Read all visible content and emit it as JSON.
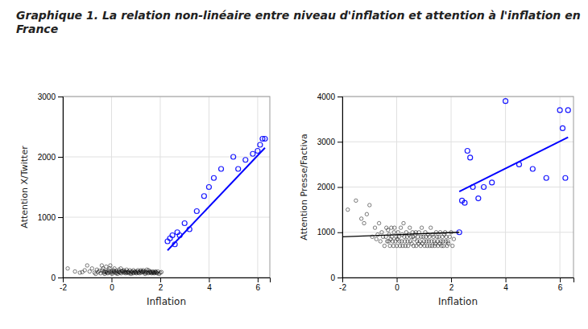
{
  "chart_data": [
    {
      "type": "scatter",
      "title": "Graphique 1. La relation non-linéaire entre niveau d'inflation et attention à l'inflation en\nFrance",
      "xlabel": "Inflation",
      "ylabel": "Attention X/Twitter",
      "xlim": [
        -2,
        6.5
      ],
      "ylim": [
        0,
        3000
      ],
      "xticks": [
        -2,
        0,
        2,
        4,
        6
      ],
      "yticks": [
        0,
        1000,
        2000,
        3000
      ],
      "grid": true,
      "series": [
        {
          "type": "scatter",
          "color": "#000000",
          "x": [
            -1.8,
            -1.5,
            -1.3,
            -1.2,
            -1.1,
            -1.0,
            -0.9,
            -0.8,
            -0.7,
            -0.65,
            -0.6,
            -0.55,
            -0.5,
            -0.45,
            -0.4,
            -0.38,
            -0.35,
            -0.32,
            -0.3,
            -0.28,
            -0.25,
            -0.22,
            -0.2,
            -0.18,
            -0.15,
            -0.12,
            -0.1,
            -0.08,
            -0.05,
            -0.02,
            0.0,
            0.02,
            0.05,
            0.08,
            0.1,
            0.12,
            0.15,
            0.18,
            0.2,
            0.22,
            0.25,
            0.28,
            0.3,
            0.32,
            0.35,
            0.38,
            0.4,
            0.42,
            0.45,
            0.48,
            0.5,
            0.52,
            0.55,
            0.58,
            0.6,
            0.62,
            0.65,
            0.68,
            0.7,
            0.72,
            0.75,
            0.78,
            0.8,
            0.82,
            0.85,
            0.88,
            0.9,
            0.92,
            0.95,
            0.98,
            1.0,
            1.02,
            1.05,
            1.08,
            1.1,
            1.12,
            1.15,
            1.18,
            1.2,
            1.22,
            1.25,
            1.28,
            1.3,
            1.32,
            1.35,
            1.38,
            1.4,
            1.42,
            1.45,
            1.48,
            1.5,
            1.52,
            1.55,
            1.58,
            1.6,
            1.62,
            1.65,
            1.68,
            1.7,
            1.72,
            1.75,
            1.78,
            1.8,
            1.82,
            1.85,
            1.88,
            1.9,
            1.95,
            2.0,
            2.05
          ],
          "values": [
            150,
            100,
            80,
            90,
            120,
            200,
            100,
            150,
            80,
            60,
            130,
            90,
            110,
            70,
            200,
            120,
            150,
            80,
            100,
            60,
            90,
            180,
            100,
            80,
            70,
            120,
            90,
            150,
            200,
            80,
            100,
            60,
            80,
            120,
            100,
            150,
            90,
            70,
            110,
            80,
            60,
            100,
            130,
            90,
            80,
            150,
            70,
            100,
            110,
            90,
            120,
            80,
            100,
            70,
            90,
            130,
            80,
            100,
            90,
            70,
            120,
            80,
            60,
            100,
            90,
            70,
            120,
            80,
            100,
            90,
            80,
            70,
            100,
            120,
            80,
            90,
            70,
            100,
            120,
            80,
            100,
            90,
            120,
            100,
            80,
            60,
            100,
            80,
            130,
            90,
            70,
            120,
            80,
            100,
            90,
            80,
            70,
            100,
            80,
            90,
            70,
            80,
            100,
            90,
            80,
            70,
            100,
            60,
            80,
            90
          ]
        },
        {
          "type": "scatter",
          "color": "#0000ff",
          "x": [
            2.3,
            2.4,
            2.5,
            2.6,
            2.7,
            2.8,
            3.0,
            3.2,
            3.5,
            3.8,
            4.0,
            4.2,
            4.5,
            5.0,
            5.2,
            5.5,
            5.8,
            6.0,
            6.1,
            6.2,
            6.3
          ],
          "values": [
            600,
            650,
            700,
            550,
            750,
            700,
            900,
            800,
            1100,
            1350,
            1500,
            1650,
            1800,
            2000,
            1800,
            1950,
            2050,
            2100,
            2200,
            2300,
            2300
          ]
        },
        {
          "type": "line",
          "color": "#0000ff",
          "x": [
            2.3,
            6.3
          ],
          "values": [
            450,
            2150
          ]
        }
      ]
    },
    {
      "type": "scatter",
      "xlabel": "Inflation",
      "ylabel": "Attention Presse/Factiva",
      "xlim": [
        -2,
        6.5
      ],
      "ylim": [
        0,
        4000
      ],
      "xticks": [
        -2,
        0,
        2,
        4,
        6
      ],
      "yticks": [
        0,
        1000,
        2000,
        3000,
        4000
      ],
      "grid": true,
      "series": [
        {
          "type": "scatter",
          "color": "#000000",
          "x": [
            -1.8,
            -1.5,
            -1.3,
            -1.2,
            -1.1,
            -1.0,
            -0.9,
            -0.8,
            -0.75,
            -0.7,
            -0.65,
            -0.6,
            -0.55,
            -0.5,
            -0.45,
            -0.4,
            -0.38,
            -0.35,
            -0.32,
            -0.3,
            -0.28,
            -0.25,
            -0.22,
            -0.2,
            -0.18,
            -0.15,
            -0.12,
            -0.1,
            -0.08,
            -0.05,
            -0.02,
            0.0,
            0.02,
            0.05,
            0.08,
            0.1,
            0.12,
            0.15,
            0.18,
            0.2,
            0.22,
            0.25,
            0.28,
            0.3,
            0.32,
            0.35,
            0.38,
            0.4,
            0.42,
            0.45,
            0.48,
            0.5,
            0.52,
            0.55,
            0.58,
            0.6,
            0.62,
            0.65,
            0.68,
            0.7,
            0.72,
            0.75,
            0.78,
            0.8,
            0.82,
            0.85,
            0.88,
            0.9,
            0.92,
            0.95,
            0.98,
            1.0,
            1.02,
            1.05,
            1.08,
            1.1,
            1.12,
            1.15,
            1.18,
            1.2,
            1.22,
            1.25,
            1.28,
            1.3,
            1.32,
            1.35,
            1.38,
            1.4,
            1.42,
            1.45,
            1.48,
            1.5,
            1.52,
            1.55,
            1.58,
            1.6,
            1.62,
            1.65,
            1.68,
            1.7,
            1.72,
            1.75,
            1.78,
            1.8,
            1.82,
            1.85,
            1.88,
            1.9,
            1.95,
            2.0,
            2.05,
            2.1
          ],
          "values": [
            1500,
            1700,
            1300,
            1200,
            1400,
            1600,
            900,
            1100,
            850,
            950,
            1200,
            800,
            1000,
            900,
            700,
            900,
            1100,
            800,
            1050,
            800,
            950,
            700,
            850,
            1100,
            900,
            800,
            700,
            1000,
            1100,
            800,
            900,
            700,
            850,
            1000,
            900,
            800,
            700,
            1100,
            800,
            950,
            700,
            1200,
            900,
            800,
            700,
            1000,
            900,
            800,
            700,
            950,
            1100,
            800,
            900,
            750,
            1000,
            900,
            700,
            850,
            950,
            1000,
            700,
            800,
            900,
            750,
            1000,
            800,
            700,
            900,
            1100,
            750,
            900,
            800,
            700,
            1000,
            900,
            800,
            700,
            950,
            800,
            900,
            700,
            1100,
            800,
            700,
            950,
            900,
            800,
            700,
            750,
            1000,
            900,
            800,
            700,
            900,
            750,
            1000,
            800,
            700,
            900,
            800,
            700,
            950,
            1000,
            800,
            900,
            700,
            800,
            750,
            900,
            1000,
            700,
            850
          ]
        },
        {
          "type": "scatter",
          "color": "#0000ff",
          "x": [
            2.3,
            2.4,
            2.5,
            2.6,
            2.7,
            2.8,
            3.0,
            3.2,
            3.5,
            4.0,
            4.5,
            5.0,
            5.5,
            6.0,
            6.1,
            6.2,
            6.3
          ],
          "values": [
            1000,
            1700,
            1650,
            2800,
            2650,
            2000,
            1750,
            2000,
            2100,
            3900,
            2500,
            2400,
            2200,
            3700,
            3300,
            2200,
            3700
          ]
        },
        {
          "type": "line",
          "color": "#0000ff",
          "x": [
            2.3,
            6.3
          ],
          "values": [
            1900,
            3100
          ]
        },
        {
          "type": "line",
          "color": "#000000",
          "x": [
            -2.0,
            2.3
          ],
          "values": [
            900,
            1000
          ]
        }
      ]
    }
  ]
}
